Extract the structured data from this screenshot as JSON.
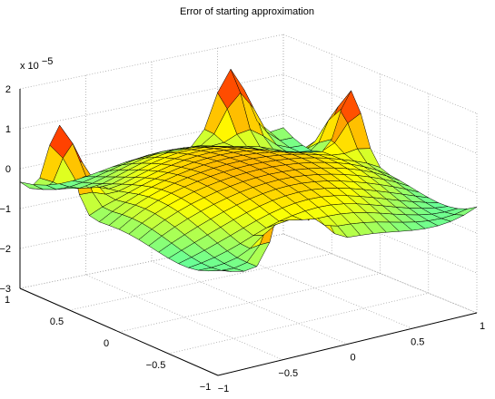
{
  "chart_data": {
    "type": "surface",
    "title": "Error of starting approximation",
    "z_scale_label": "x 10",
    "z_scale_exponent": "−5",
    "x_ticks": [
      "−1",
      "−0.5",
      "0",
      "0.5",
      "1"
    ],
    "y_ticks": [
      "−1",
      "−0.5",
      "0",
      "0.5",
      "1"
    ],
    "z_ticks": [
      "−3",
      "−2",
      "−1",
      "0",
      "1",
      "2"
    ],
    "xlim": [
      -1,
      1
    ],
    "ylim": [
      -1,
      1
    ],
    "zlim": [
      -3,
      2
    ],
    "grid": true,
    "colormap": "jet",
    "grid_size": 21,
    "z_min": -2.9,
    "z_max": 1.9,
    "colors": {
      "mesh_edge": "#000000",
      "axis": "#000000",
      "grid": "#a8a8a8",
      "background": "#ffffff"
    }
  }
}
